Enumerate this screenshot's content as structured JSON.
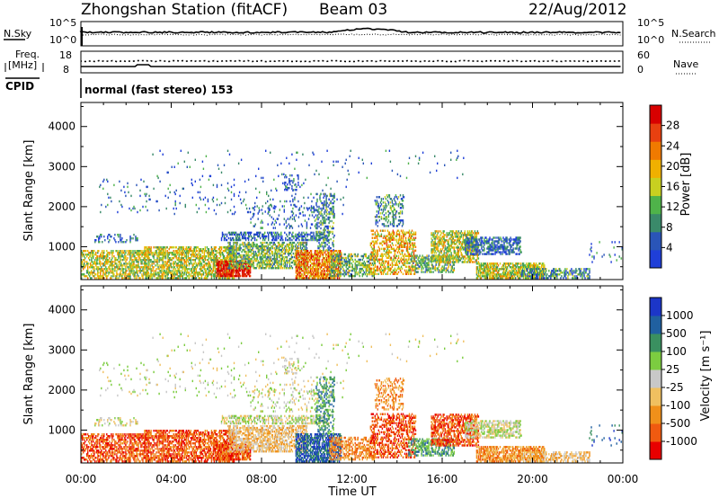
{
  "header": {
    "station": "Zhongshan Station (fitACF)",
    "beam": "Beam 03",
    "date": "22/Aug/2012"
  },
  "strip_labels": {
    "nsky": "N.Sky",
    "nsearch": "N.Search",
    "freq_line1": "Freq.",
    "freq_line2": "[MHz]",
    "nave": "Nave",
    "cpid": "CPID",
    "cpid_text": "normal (fast stereo) 153"
  },
  "strip_ticks": {
    "noise_left": [
      "10^5",
      "10^0"
    ],
    "noise_right": [
      "10^5",
      "10^0"
    ],
    "freq_left": [
      "18",
      "8"
    ],
    "nave_right": [
      "60",
      "0"
    ]
  },
  "colors": {
    "power_scale": [
      "#1f3fd8",
      "#2a55b8",
      "#3a8a6a",
      "#4fb34a",
      "#c8d020",
      "#f0b000",
      "#f07a00",
      "#e84010",
      "#d80000"
    ],
    "velocity_scale": [
      "#e80000",
      "#f05a10",
      "#f0901a",
      "#f0c060",
      "#c8c8c8",
      "#7ccc40",
      "#3a9060",
      "#2060a0",
      "#1c36c8"
    ]
  },
  "chart_data": [
    {
      "type": "heatmap",
      "title": "Power",
      "ylabel": "Slant Range [km]",
      "xlabel": "",
      "x_ticks": [
        "00:00",
        "04:00",
        "08:00",
        "12:00",
        "16:00",
        "20:00",
        "00:00"
      ],
      "y_ticks": [
        "1000",
        "2000",
        "3000",
        "4000"
      ],
      "ylim": [
        180,
        4600
      ],
      "xlim": [
        0,
        24
      ],
      "colorbar_label": "Power [dB]",
      "colorbar_ticks": [
        "4",
        "8",
        "12",
        "16",
        "20",
        "24",
        "28"
      ]
    },
    {
      "type": "heatmap",
      "title": "Velocity",
      "ylabel": "Slant Range [km]",
      "xlabel": "Time UT",
      "x_ticks": [
        "00:00",
        "04:00",
        "08:00",
        "12:00",
        "16:00",
        "20:00",
        "00:00"
      ],
      "y_ticks": [
        "1000",
        "2000",
        "3000",
        "4000"
      ],
      "ylim": [
        180,
        4600
      ],
      "xlim": [
        0,
        24
      ],
      "colorbar_label": "Velocity [m s⁻¹]",
      "colorbar_ticks": [
        "-1000",
        "-500",
        "-100",
        "-25",
        "25",
        "100",
        "500",
        "1000"
      ]
    }
  ]
}
